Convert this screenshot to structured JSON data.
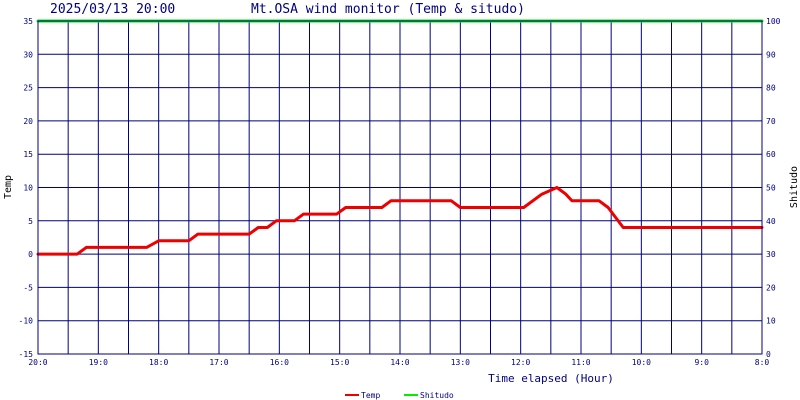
{
  "header": {
    "timestamp": "2025/03/13 20:00",
    "title": "Mt.OSA wind monitor (Temp & situdo)"
  },
  "chart_data": {
    "type": "line",
    "title": "Mt.OSA wind monitor (Temp & situdo)",
    "xlabel": "Time elapsed (Hour)",
    "ylabel": "Temp",
    "ylabel_right": "Shitudo",
    "ylim": [
      -15,
      35
    ],
    "ylim_right": [
      0,
      100
    ],
    "yticks": [
      "35",
      "30",
      "25",
      "20",
      "15",
      "10",
      "5",
      "0",
      "-5",
      "-10",
      "-15"
    ],
    "yticks_right": [
      "100",
      "90",
      "80",
      "70",
      "60",
      "50",
      "40",
      "30",
      "20",
      "10",
      "0"
    ],
    "xlim": [
      0,
      12
    ],
    "x_tick_positions": [
      0,
      1,
      2,
      3,
      4,
      5,
      6,
      7,
      8,
      9,
      10,
      11,
      12
    ],
    "x_tick_labels": [
      "20:0",
      "19:0",
      "18:0",
      "17:0",
      "16:0",
      "15:0",
      "14:0",
      "13:0",
      "12:0",
      "11:0",
      "10:0",
      "9:0",
      "8:0"
    ],
    "grid": true,
    "legend_position": "bottom-center",
    "series": [
      {
        "name": "Temp",
        "axis": "left",
        "color": "#ee0000",
        "x": [
          0,
          0.65,
          0.8,
          1.1,
          1.8,
          2.0,
          2.5,
          2.65,
          2.7,
          3.5,
          3.65,
          3.8,
          3.95,
          4.25,
          4.4,
          4.95,
          5.1,
          5.7,
          5.85,
          5.9,
          6.85,
          7.0,
          7.65,
          8.05,
          8.35,
          8.6,
          8.75,
          8.85,
          9.05,
          9.3,
          9.45,
          9.7,
          12.0
        ],
        "y": [
          0,
          0,
          1,
          1,
          1,
          2,
          2,
          3,
          3,
          3,
          4,
          4,
          5,
          5,
          6,
          6,
          7,
          7,
          8,
          8,
          8,
          7,
          7,
          7,
          9,
          10,
          9,
          8,
          8,
          8,
          7,
          4,
          4
        ]
      },
      {
        "name": "Shitudo",
        "axis": "right",
        "color": "#00ee00",
        "x": [
          0,
          12
        ],
        "y": [
          100,
          100
        ]
      }
    ]
  }
}
